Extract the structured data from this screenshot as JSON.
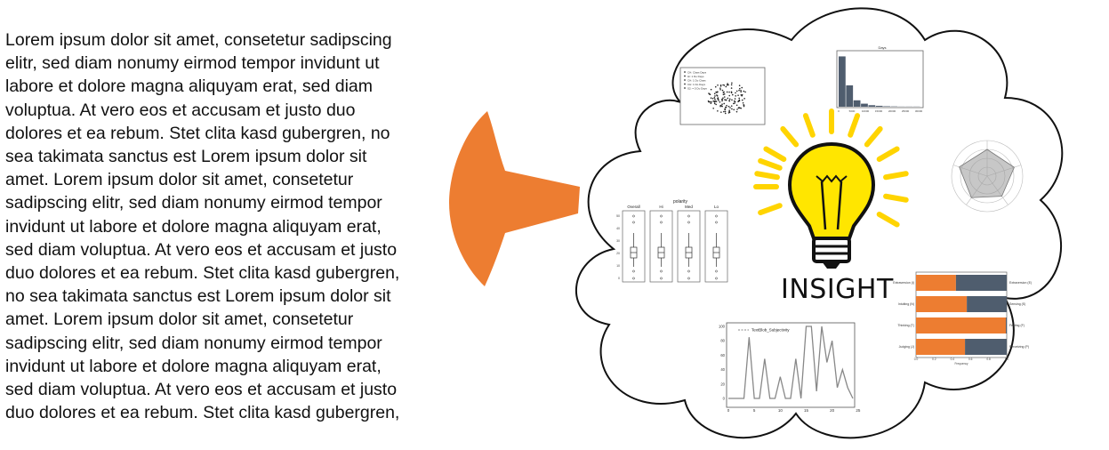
{
  "paragraph_lines": [
    "Lorem ipsum dolor sit amet, consetetur sadipscing",
    "elitr, sed diam nonumy eirmod tempor invidunt ut",
    "labore et dolore magna aliquyam erat, sed diam",
    "voluptua. At vero eos et accusam et justo duo",
    "dolores et ea rebum. Stet clita kasd gubergren, no",
    "sea takimata sanctus est Lorem ipsum dolor sit",
    "amet. Lorem ipsum dolor sit amet, consetetur",
    "sadipscing elitr, sed diam nonumy eirmod tempor",
    "invidunt ut labore et dolore magna aliquyam erat,",
    "sed diam voluptua. At vero eos et accusam et justo",
    "duo dolores et ea rebum. Stet clita kasd gubergren,",
    "no sea takimata sanctus est Lorem ipsum dolor sit",
    "amet. Lorem ipsum dolor sit amet, consetetur",
    "sadipscing elitr, sed diam nonumy eirmod tempor",
    "invidunt ut labore et dolore magna aliquyam erat,",
    "sed diam voluptua. At vero eos et accusam et justo",
    "duo dolores et ea rebum. Stet clita kasd gubergren,"
  ],
  "insight_label": "INSIGHT",
  "colors": {
    "funnel": "#ed7d31",
    "bulb": "#ffe600",
    "rays": "#ffd400",
    "bar_orange": "#ed7d31",
    "bar_slate": "#4f5d6e",
    "hist_bar": "#4f5d6e"
  },
  "icons": [
    "funnel-icon",
    "cloud-shape",
    "lightbulb-icon"
  ],
  "line_chart": {
    "legend": "TextBlob_Subjectivity",
    "x_ticks": [
      "0",
      "5",
      "10",
      "15",
      "20",
      "25"
    ],
    "y_ticks": [
      "0",
      "20",
      "40",
      "60",
      "80",
      "100"
    ],
    "values": [
      0,
      0,
      0,
      0,
      85,
      0,
      0,
      55,
      0,
      0,
      30,
      0,
      0,
      55,
      0,
      100,
      100,
      10,
      100,
      50,
      80,
      15,
      40,
      15,
      0
    ]
  },
  "box_plot": {
    "title": "polarity",
    "panels": [
      "Overall",
      "Hi",
      "Med",
      "Lo"
    ],
    "y_ticks": [
      "0",
      "10",
      "20",
      "30",
      "40",
      "50"
    ]
  },
  "stacked_bar": {
    "left_labels": [
      "Extraversion (I)",
      "Intuiting (N)",
      "Thinking (T)",
      "Judging (J)"
    ],
    "right_labels": [
      "Extraversion (E)",
      "Sensing (S)",
      "Feeling (F)",
      "Perceiving (P)"
    ],
    "orange_fraction": [
      0.44,
      0.56,
      0.99,
      0.54
    ],
    "x_ticks": [
      "0.0",
      "0.2",
      "0.4",
      "0.6",
      "0.8",
      "1.0"
    ],
    "xlabel": "Frequency"
  },
  "histogram": {
    "legend": "Days",
    "values": [
      330,
      140,
      42,
      20,
      10,
      6,
      3,
      2,
      1,
      1,
      1
    ],
    "x_ticks": [
      "0",
      "5000",
      "10000",
      "15000",
      "20000",
      "25000",
      "30000"
    ]
  },
  "scatter_legend": [
    "CH: Class Days",
    "Hi: 1 Do Days",
    "CH: 1 Do Class",
    "CH: 1 Do Days",
    "S2: = 5 Do Days"
  ]
}
